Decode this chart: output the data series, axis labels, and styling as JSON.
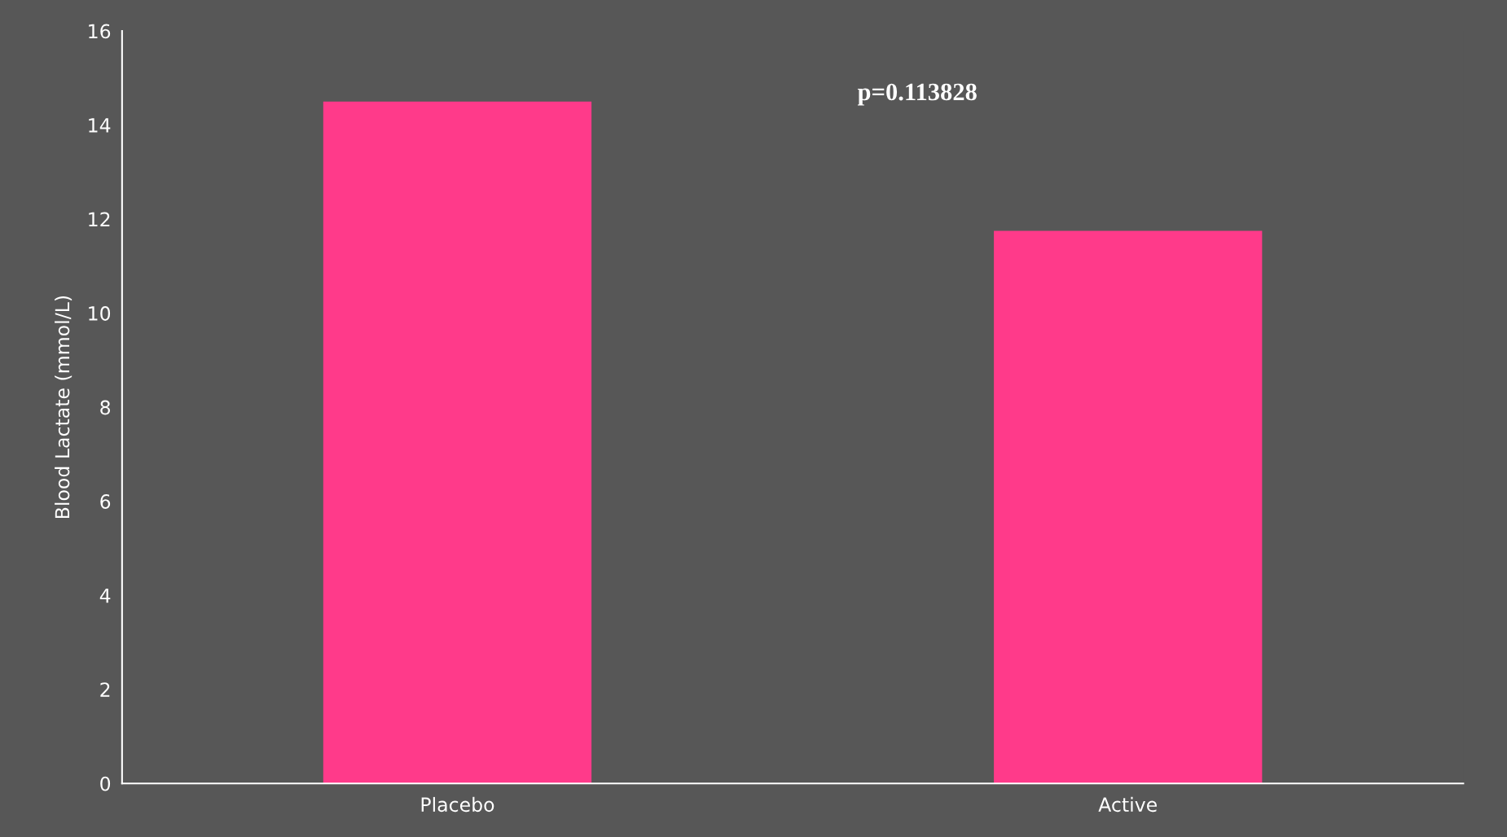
{
  "chart_data": {
    "type": "bar",
    "ylabel": "Blood Lactate (mmol/L)",
    "categories": [
      "Placebo",
      "Active"
    ],
    "values": [
      14.5,
      11.75
    ],
    "color": "#ff3a8a",
    "ylim": [
      0,
      16
    ],
    "yticks": [
      0,
      2,
      4,
      6,
      8,
      10,
      12,
      14,
      16
    ],
    "grid": false,
    "annotations": [
      "p=0.113828"
    ]
  }
}
